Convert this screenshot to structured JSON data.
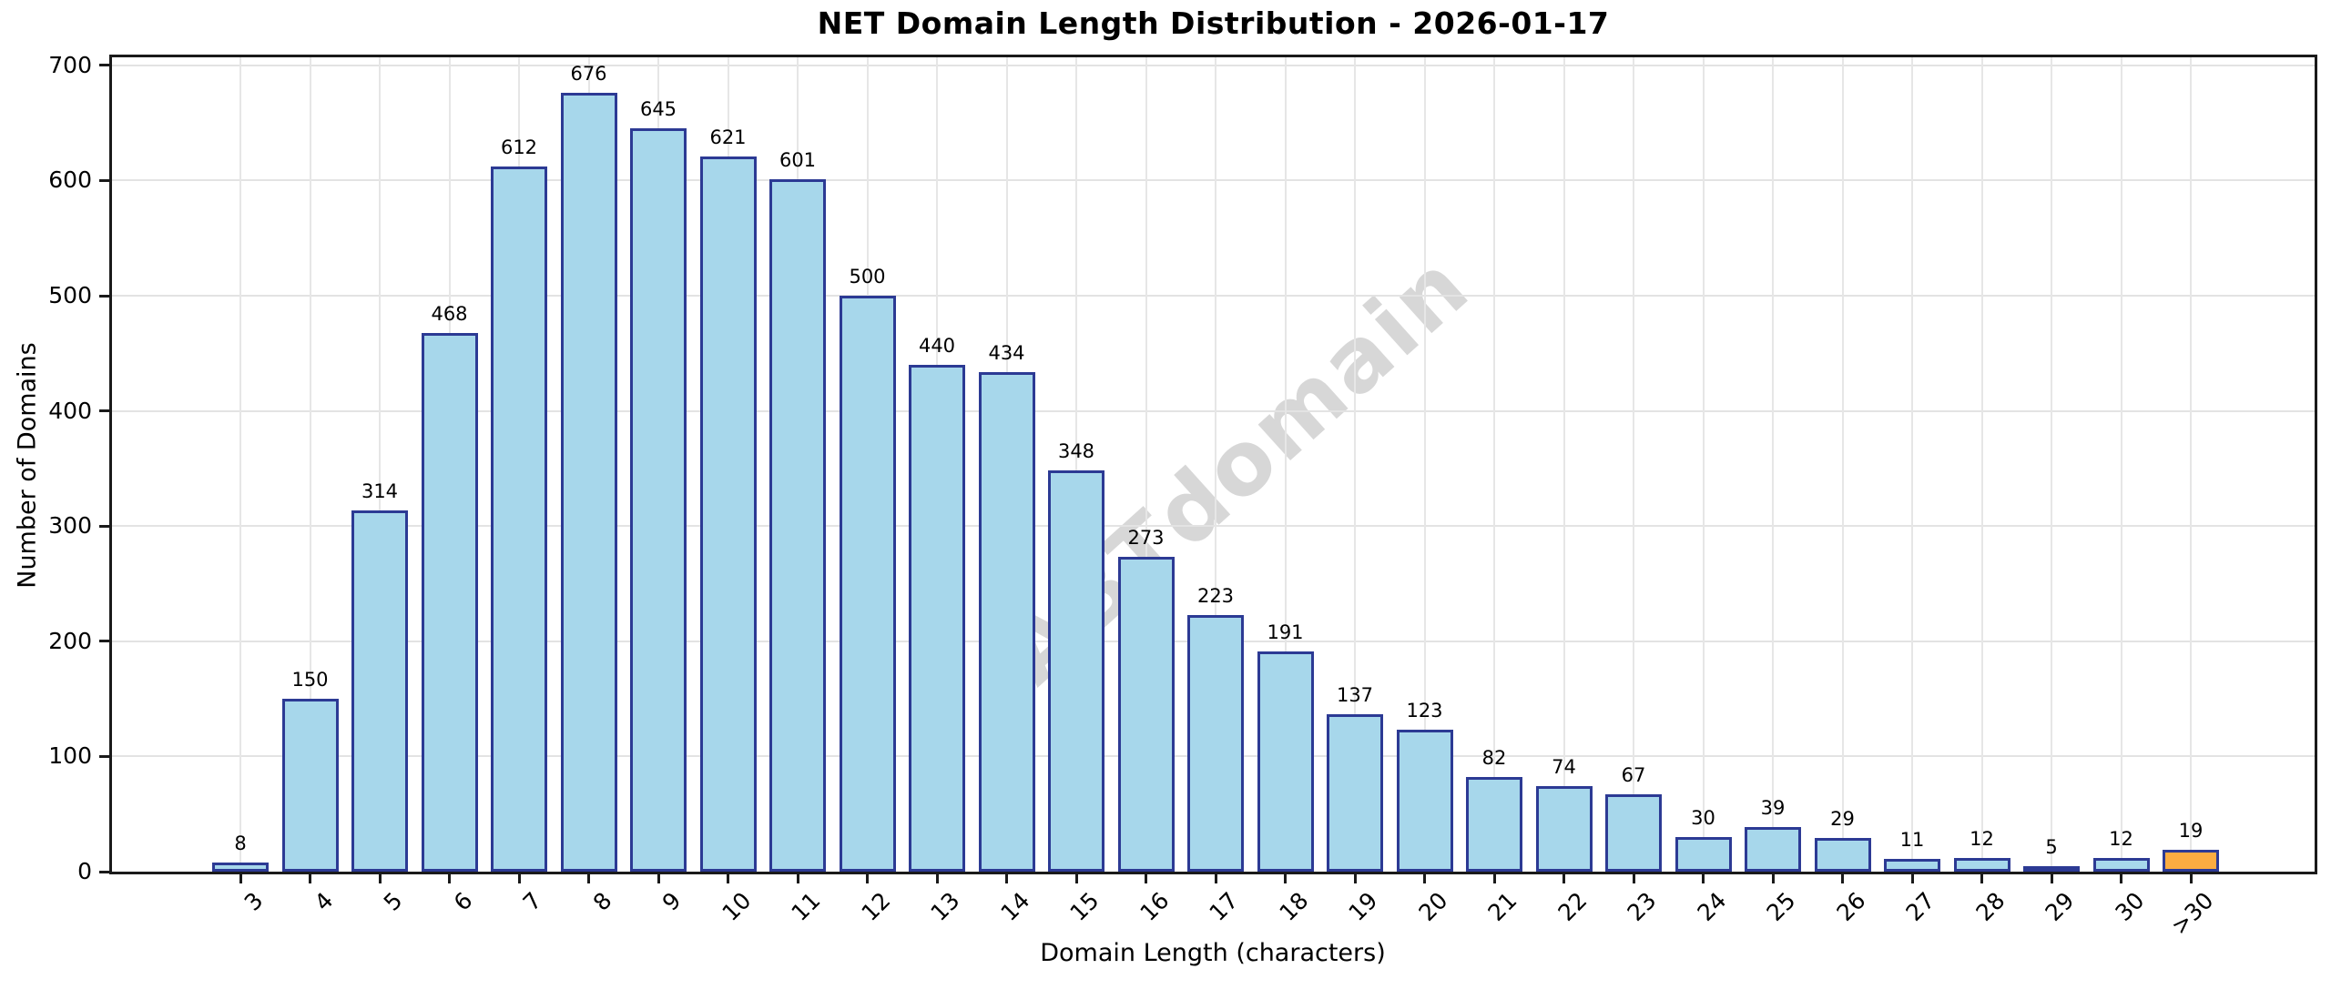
{
  "title": "NET Domain Length Distribution - 2026-01-17",
  "watermark": "ABTdomain",
  "chart_data": {
    "type": "bar",
    "title": "NET Domain Length Distribution - 2026-01-17",
    "xlabel": "Domain Length (characters)",
    "ylabel": "Number of Domains",
    "categories": [
      "3",
      "4",
      "5",
      "6",
      "7",
      "8",
      "9",
      "10",
      "11",
      "12",
      "13",
      "14",
      "15",
      "16",
      "17",
      "18",
      "19",
      "20",
      "21",
      "22",
      "23",
      "24",
      "25",
      "26",
      "27",
      "28",
      "29",
      "30",
      ">30"
    ],
    "values": [
      8,
      150,
      314,
      468,
      612,
      676,
      645,
      621,
      601,
      500,
      440,
      434,
      348,
      273,
      223,
      191,
      137,
      123,
      82,
      74,
      67,
      30,
      39,
      29,
      11,
      12,
      5,
      12,
      19
    ],
    "bar_labels_shown": true,
    "ylim": [
      0,
      707
    ],
    "yticks": [
      0,
      100,
      200,
      300,
      400,
      500,
      600,
      700
    ],
    "grid": true,
    "legend": "none",
    "bar_color": "#a7d7eb",
    "bar_edge_color": "#2c3a94",
    "highlight_index": 28,
    "highlight_color": "#fbac41",
    "watermark": "ABTdomain",
    "xtick_rotation_deg": 45
  }
}
